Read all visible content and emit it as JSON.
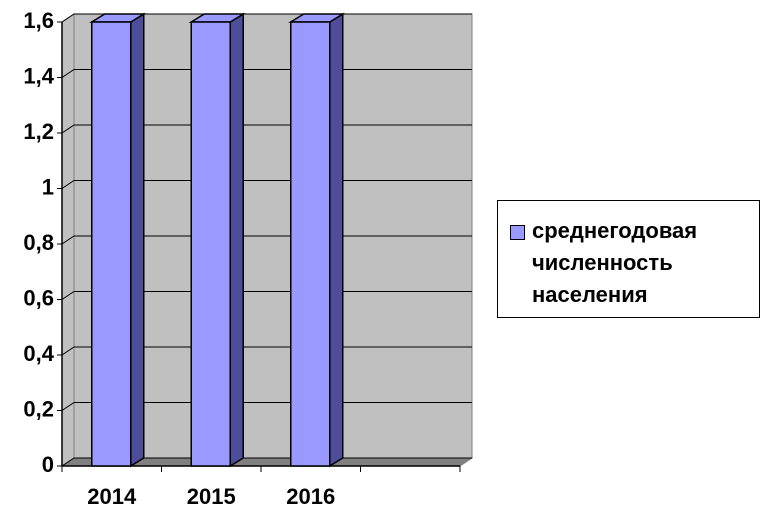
{
  "chart_data": {
    "type": "bar3d",
    "categories": [
      "2014",
      "2015",
      "2016",
      null
    ],
    "series": [
      {
        "name": "среднегодовая численность населения",
        "color": "#9999ff",
        "values": [
          1.6,
          1.6,
          1.6,
          null
        ]
      }
    ],
    "ylim": [
      0,
      1.6
    ],
    "yticks": [
      0,
      {
        "value": 0.2,
        "label": "0,2"
      },
      {
        "value": 0.4,
        "label": "0,4"
      },
      {
        "value": 0.6,
        "label": "0,6"
      },
      {
        "value": 0.8,
        "label": "0,8"
      },
      1,
      {
        "value": 1.2,
        "label": "1,2"
      },
      {
        "value": 1.4,
        "label": "1,4"
      },
      {
        "value": 1.6,
        "label": "1,6"
      }
    ],
    "grid": true,
    "legend": "right"
  }
}
